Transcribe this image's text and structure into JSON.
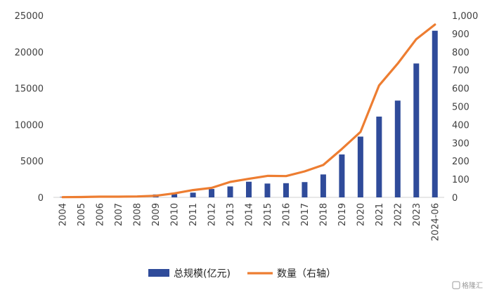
{
  "chart_data": {
    "type": "bar",
    "categories": [
      "2004",
      "2005",
      "2006",
      "2007",
      "2008",
      "2009",
      "2010",
      "2011",
      "2012",
      "2013",
      "2014",
      "2015",
      "2016",
      "2017",
      "2018",
      "2019",
      "2020",
      "2021",
      "2022",
      "2023",
      "2024-06"
    ],
    "series": [
      {
        "name": "总规模(亿元)",
        "type": "bar",
        "axis": "left",
        "color": "#2F4B9A",
        "values": [
          60,
          20,
          60,
          40,
          60,
          400,
          450,
          650,
          1150,
          1500,
          2150,
          1900,
          1950,
          2100,
          3150,
          5900,
          8350,
          11100,
          13300,
          18400,
          22900
        ]
      },
      {
        "name": "数量（右轴）",
        "type": "line",
        "axis": "right",
        "color": "#ED7D31",
        "values": [
          1,
          2,
          4,
          4,
          5,
          9,
          22,
          40,
          52,
          85,
          102,
          118,
          117,
          143,
          178,
          266,
          360,
          615,
          735,
          870,
          950
        ]
      }
    ],
    "y_left": {
      "min": 0,
      "max": 25000,
      "ticks": [
        "0",
        "5000",
        "10000",
        "15000",
        "20000",
        "25000"
      ]
    },
    "y_right": {
      "min": 0,
      "max": 1000,
      "ticks": [
        "0",
        "100",
        "200",
        "300",
        "400",
        "500",
        "600",
        "700",
        "800",
        "900",
        "1,000"
      ]
    },
    "legend_position": "bottom",
    "grid": false
  },
  "watermark": "格隆汇"
}
